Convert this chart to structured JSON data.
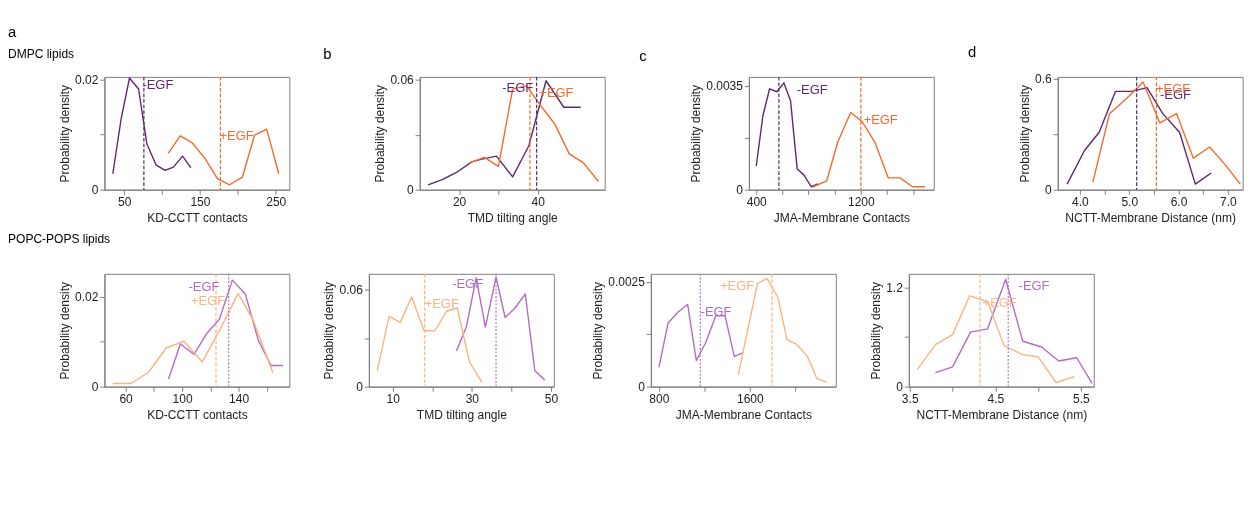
{
  "chart_data": [
    {
      "type": "line",
      "title": "a",
      "subtitle": "DMPC lipids",
      "xlabel": "KD-CCTT contacts",
      "ylabel": "Probability density",
      "xlim": [
        24,
        268
      ],
      "xticks": [
        50,
        {
          "value": 100,
          "label": null
        },
        150,
        {
          "value": 200,
          "label": null
        },
        250
      ],
      "ylim": [
        0,
        0.0205
      ],
      "yticks": [
        0,
        {
          "value": 0.01,
          "label": null
        },
        0.02
      ],
      "series": [
        {
          "name": "-EGF",
          "color": "#5b2a6e",
          "x": [
            35,
            46,
            57,
            69,
            80,
            92,
            104,
            115,
            127,
            138
          ],
          "values": [
            0.0029,
            0.0129,
            0.0203,
            0.0183,
            0.0083,
            0.0045,
            0.0035,
            0.0041,
            0.0061,
            0.004
          ]
        },
        {
          "name": "+EGF",
          "color": "#f26b2d",
          "x": [
            108,
            124,
            140,
            157,
            173,
            189,
            206,
            222,
            238,
            254
          ],
          "values": [
            0.0066,
            0.0098,
            0.0085,
            0.0056,
            0.002,
            0.0009,
            0.0023,
            0.0099,
            0.011,
            0.0029
          ]
        }
      ],
      "ref_lines": [
        {
          "axis": "x",
          "value": 76,
          "color": "#5b2a6e",
          "line_style": "dashed"
        },
        {
          "axis": "x",
          "value": 177,
          "color": "#f26b2d",
          "line_style": "dashed"
        }
      ]
    },
    {
      "type": "line",
      "title": "b",
      "xlabel": "TMD tilting angle",
      "ylabel": "Probability density",
      "xlim": [
        10,
        57
      ],
      "xticks": [
        20,
        {
          "value": 30,
          "label": null
        },
        40
      ],
      "ylim": [
        0,
        0.0617
      ],
      "yticks": [
        0,
        {
          "value": 0.03,
          "label": null
        },
        0.06
      ],
      "series": [
        {
          "name": "-EGF",
          "color": "#5b2a6e",
          "x": [
            12.1,
            15.7,
            19.6,
            23.2,
            25.5,
            29.5,
            33.6,
            37.7,
            42.1,
            46.6,
            50.9
          ],
          "values": [
            0.0026,
            0.0055,
            0.0098,
            0.0152,
            0.0166,
            0.0184,
            0.007,
            0.0239,
            0.0596,
            0.0451,
            0.0451
          ]
        },
        {
          "name": "+EGF",
          "color": "#f26b2d",
          "x": [
            22.5,
            26.4,
            30,
            33.6,
            37.1,
            40.4,
            44.4,
            48,
            51.6,
            55.4
          ],
          "values": [
            0.0145,
            0.0177,
            0.0128,
            0.055,
            0.0569,
            0.0469,
            0.0356,
            0.0196,
            0.0147,
            0.0045
          ]
        }
      ],
      "ref_lines": [
        {
          "axis": "x",
          "value": 39.7,
          "color": "#5b2a6e",
          "line_style": "dashed"
        },
        {
          "axis": "x",
          "value": 38,
          "color": "#f26b2d",
          "line_style": "dashed"
        }
      ]
    },
    {
      "type": "line",
      "title": "c",
      "xlabel": "JMA-Membrane Contacts",
      "ylabel": "Probability density",
      "xlim": [
        344,
        1758
      ],
      "xticks": [
        400,
        {
          "value": 600,
          "label": null
        },
        {
          "value": 800,
          "label": null
        },
        {
          "value": 1000,
          "label": null
        },
        1200,
        {
          "value": 1400,
          "label": null
        },
        {
          "value": 1600,
          "label": null
        }
      ],
      "ylim": [
        0,
        0.0038
      ],
      "yticks": [
        0,
        {
          "value": 0.00175,
          "label": null
        },
        0.0035
      ],
      "series": [
        {
          "name": "-EGF",
          "color": "#5b2a6e",
          "x": [
            400,
            451,
            502,
            558,
            611,
            662,
            713,
            764,
            820,
            871
          ],
          "values": [
            0.0008,
            0.0025,
            0.0034,
            0.0033,
            0.0036,
            0.003,
            0.0007,
            0.0005,
            0.0001,
            0.0002
          ]
        },
        {
          "name": "+EGF",
          "color": "#f26b2d",
          "x": [
            837,
            939,
            1023,
            1122,
            1208,
            1307,
            1409,
            1500,
            1594,
            1690
          ],
          "values": [
            0.0001,
            0.0003,
            0.0016,
            0.0026,
            0.0023,
            0.0016,
            0.0004,
            0.0004,
            0.0001,
            0.0001
          ]
        }
      ],
      "ref_lines": [
        {
          "axis": "x",
          "value": 573,
          "color": "#5b2a6e",
          "line_style": "dashed"
        },
        {
          "axis": "x",
          "value": 1200,
          "color": "#f26b2d",
          "line_style": "dashed"
        }
      ]
    },
    {
      "type": "line",
      "title": "d",
      "xlabel": "NCTT-Membrane Distance (nm)",
      "ylabel": "Probability density",
      "xlim": [
        3.55,
        7.3
      ],
      "xticks": [
        {
          "value": 4,
          "label": "4.0"
        },
        {
          "value": 4.5,
          "label": null
        },
        {
          "value": 5,
          "label": "5.0"
        },
        {
          "value": 5.5,
          "label": null
        },
        {
          "value": 6,
          "label": "6.0"
        },
        {
          "value": 6.5,
          "label": null
        },
        {
          "value": 7,
          "label": "7.0"
        }
      ],
      "ylim": [
        0,
        0.608
      ],
      "yticks": [
        0,
        {
          "value": 0.3,
          "label": null
        },
        0.6
      ],
      "series": [
        {
          "name": "-EGF",
          "color": "#5b2a6e",
          "x": [
            3.74,
            4.09,
            4.39,
            4.72,
            5.05,
            5.36,
            5.68,
            6.02,
            6.34,
            6.66
          ],
          "values": [
            0.03,
            0.21,
            0.31,
            0.53,
            0.53,
            0.55,
            0.41,
            0.31,
            0.03,
            0.09
          ]
        },
        {
          "name": "+EGF",
          "color": "#f26b2d",
          "x": [
            4.26,
            4.6,
            4.94,
            5.28,
            5.62,
            5.96,
            6.3,
            6.63,
            6.96,
            7.25
          ],
          "values": [
            0.04,
            0.41,
            0.49,
            0.58,
            0.36,
            0.41,
            0.17,
            0.23,
            0.13,
            0.03
          ]
        }
      ],
      "ref_lines": [
        {
          "axis": "x",
          "value": 5.15,
          "color": "#5b2a6e",
          "line_style": "dashed"
        },
        {
          "axis": "x",
          "value": 5.55,
          "color": "#f26b2d",
          "line_style": "dashed"
        }
      ]
    },
    {
      "type": "line",
      "subtitle": "POPC-POPS lipids",
      "xlabel": "KD-CCTT contacts",
      "ylabel": "Probability density",
      "xlim": [
        45,
        176
      ],
      "xticks": [
        60,
        {
          "value": 80,
          "label": null
        },
        100,
        {
          "value": 120,
          "label": null
        },
        140,
        {
          "value": 160,
          "label": null
        }
      ],
      "ylim": [
        0,
        0.0251
      ],
      "yticks": [
        0,
        {
          "value": 0.01,
          "label": null
        },
        0.02
      ],
      "series": [
        {
          "name": "-EGF",
          "color": "#b36bc4",
          "x": [
            90.4,
            98.7,
            108.4,
            117.6,
            126.4,
            135.6,
            144.8,
            154,
            163,
            171.5
          ],
          "values": [
            0.0017,
            0.0095,
            0.0072,
            0.0119,
            0.015,
            0.0237,
            0.0206,
            0.0103,
            0.0047,
            0.0047
          ]
        },
        {
          "name": "+EGF",
          "color": "#fbb37f",
          "x": [
            50.8,
            63.8,
            76.2,
            88.7,
            101.2,
            108.4,
            114.3,
            126.8,
            139.6,
            150.2,
            164.3
          ],
          "values": [
            0.0007,
            0.0007,
            0.0032,
            0.0086,
            0.0101,
            0.0076,
            0.0055,
            0.0127,
            0.0207,
            0.0149,
            0.0031
          ]
        }
      ],
      "ref_lines": [
        {
          "axis": "x",
          "value": 133,
          "color": "#b36bc4",
          "line_style": "dotted"
        },
        {
          "axis": "x",
          "value": 124,
          "color": "#fbb37f",
          "line_style": "dashed"
        }
      ]
    },
    {
      "type": "line",
      "xlabel": "TMD tilting angle",
      "ylabel": "Probability density",
      "xlim": [
        4,
        50.7
      ],
      "xticks": [
        10,
        {
          "value": 20,
          "label": null
        },
        30,
        {
          "value": 40,
          "label": null
        },
        50
      ],
      "ylim": [
        0,
        0.07
      ],
      "yticks": [
        0,
        {
          "value": 0.03,
          "label": null
        },
        0.06
      ],
      "series": [
        {
          "name": "-EGF",
          "color": "#b36bc4",
          "x": [
            26.1,
            28.6,
            31.1,
            33.4,
            36.1,
            38.4,
            40.8,
            43.5,
            45.9,
            48.4
          ],
          "values": [
            0.0222,
            0.037,
            0.0676,
            0.037,
            0.0679,
            0.0429,
            0.0485,
            0.0575,
            0.0099,
            0.0041
          ]
        },
        {
          "name": "+EGF",
          "color": "#fbb37f",
          "x": [
            6.1,
            9.1,
            11.9,
            14.8,
            17.9,
            20.7,
            23.6,
            26.3,
            29.4,
            32.5
          ],
          "values": [
            0.0099,
            0.0436,
            0.0399,
            0.0556,
            0.0347,
            0.0347,
            0.0468,
            0.0488,
            0.0153,
            0.0028
          ]
        }
      ],
      "ref_lines": [
        {
          "axis": "x",
          "value": 36.1,
          "color": "#b36bc4",
          "line_style": "dotted"
        },
        {
          "axis": "x",
          "value": 18.1,
          "color": "#fbb37f",
          "line_style": "dashed"
        }
      ]
    },
    {
      "type": "line",
      "xlabel": "JMA-Membrane Contacts",
      "ylabel": "Probability density",
      "xlim": [
        730,
        2356
      ],
      "xticks": [
        800,
        {
          "value": 1200,
          "label": null
        },
        1600,
        {
          "value": 2000,
          "label": null
        }
      ],
      "ylim": [
        0,
        0.00269
      ],
      "yticks": [
        0,
        {
          "value": 0.00125,
          "label": null
        },
        0.0025
      ],
      "series": [
        {
          "name": "-EGF",
          "color": "#b36bc4",
          "x": [
            800,
            881,
            969,
            1053,
            1129,
            1213,
            1300,
            1382,
            1463,
            1542
          ],
          "values": [
            0.00046,
            0.00152,
            0.00178,
            0.00196,
            0.00062,
            0.00106,
            0.00169,
            0.00169,
            0.00072,
            0.00081
          ]
        },
        {
          "name": "+EGF",
          "color": "#fbb37f",
          "x": [
            1498,
            1667,
            1751,
            1847,
            1926,
            2016,
            2109,
            2190,
            2278
          ],
          "values": [
            0.00028,
            0.00246,
            0.00258,
            0.00212,
            0.00112,
            0.001,
            0.00071,
            0.00019,
            0.0001
          ]
        }
      ],
      "ref_lines": [
        {
          "axis": "x",
          "value": 1164,
          "color": "#b36bc4",
          "line_style": "dotted"
        },
        {
          "axis": "x",
          "value": 1795,
          "color": "#fbb37f",
          "line_style": "dashed"
        }
      ]
    },
    {
      "type": "line",
      "xlabel": "NCTT-Membrane Distance (nm)",
      "ylabel": "Probability density",
      "xlim": [
        3.49,
        5.65
      ],
      "xticks": [
        3.5,
        {
          "value": 4,
          "label": null
        },
        4.5,
        {
          "value": 5,
          "label": null
        },
        5.5
      ],
      "ylim": [
        0,
        1.366
      ],
      "yticks": [
        0,
        {
          "value": 0.6,
          "label": null
        },
        1.2
      ],
      "series": [
        {
          "name": "-EGF",
          "color": "#b36bc4",
          "x": [
            3.8,
            4.0,
            4.21,
            4.41,
            4.62,
            4.82,
            5.04,
            5.24,
            5.45,
            5.63
          ],
          "values": [
            0.17,
            0.24,
            0.66,
            0.7,
            1.3,
            0.55,
            0.48,
            0.31,
            0.35,
            0.04
          ]
        },
        {
          "name": "+EGF",
          "color": "#fbb37f",
          "x": [
            3.59,
            3.8,
            4.0,
            4.2,
            4.41,
            4.6,
            4.81,
            5.0,
            5.21,
            5.42
          ],
          "values": [
            0.21,
            0.51,
            0.63,
            1.1,
            1.03,
            0.5,
            0.39,
            0.36,
            0.05,
            0.12
          ]
        }
      ],
      "ref_lines": [
        {
          "axis": "x",
          "value": 4.65,
          "color": "#b36bc4",
          "line_style": "dotted"
        },
        {
          "axis": "x",
          "value": 4.32,
          "color": "#fbb37f",
          "line_style": "dashed"
        }
      ]
    }
  ]
}
